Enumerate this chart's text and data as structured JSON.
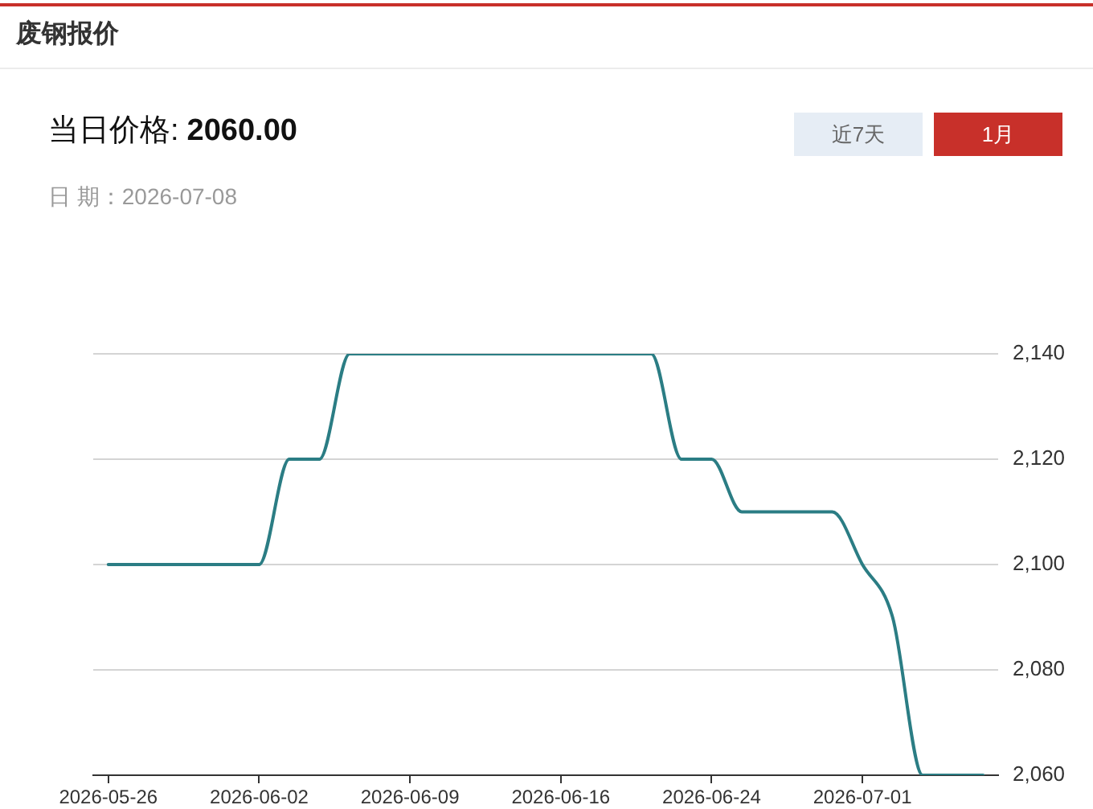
{
  "chart_data": {
    "type": "line",
    "title": "废钢报价",
    "annotations": [
      "当日价格:",
      "2060.00",
      "日 期：2026-07-08",
      "近7天",
      "1月"
    ],
    "categories": [
      "2026-05-26",
      null,
      null,
      null,
      null,
      "2026-06-02",
      null,
      null,
      null,
      null,
      "2026-06-09",
      null,
      null,
      null,
      null,
      "2026-06-16",
      null,
      null,
      null,
      null,
      "2026-06-24",
      null,
      null,
      null,
      null,
      "2026-07-01",
      null,
      null,
      null,
      null
    ],
    "values": [
      2100,
      2100,
      2100,
      2100,
      2100,
      2100,
      2120,
      2120,
      2140,
      2140,
      2140,
      2140,
      2140,
      2140,
      2140,
      2140,
      2140,
      2140,
      2140,
      2120,
      2120,
      2110,
      2110,
      2110,
      2110,
      2100,
      2090,
      2060,
      2060,
      2060
    ],
    "color": "#2b7d84",
    "ylim": [
      2060,
      2140
    ],
    "yticks": [
      {
        "value": 2060,
        "label": "2,060"
      },
      {
        "value": 2080,
        "label": "2,080"
      },
      {
        "value": 2100,
        "label": "2,100"
      },
      {
        "value": 2120,
        "label": "2,120"
      },
      {
        "value": 2140,
        "label": "2,140"
      }
    ],
    "grid": "y",
    "marker": "none",
    "line_style": "solid"
  }
}
